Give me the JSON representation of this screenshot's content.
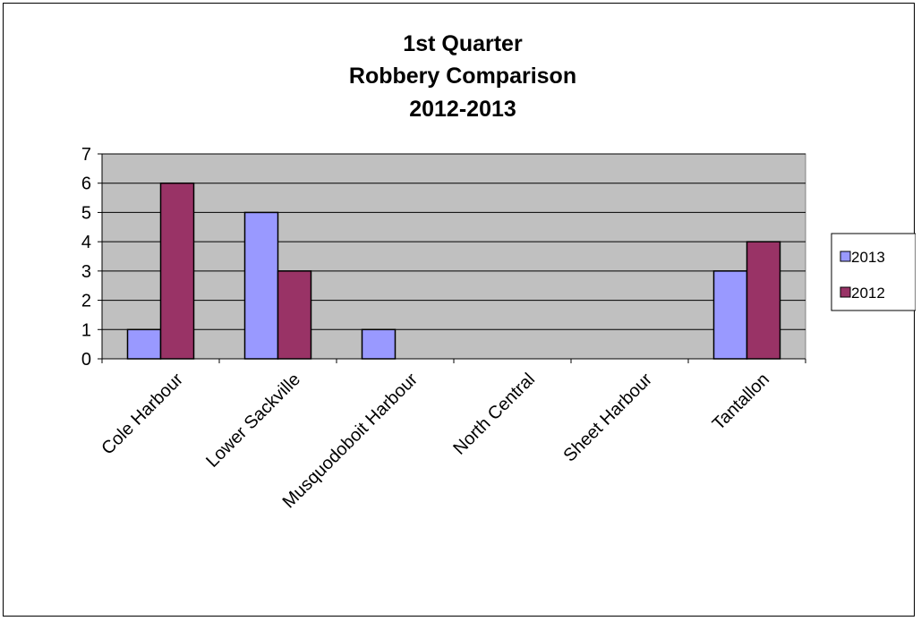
{
  "chart_data": {
    "type": "bar",
    "title_lines": [
      "1st Quarter",
      "Robbery Comparison",
      "2012-2013"
    ],
    "categories": [
      "Cole Harbour",
      "Lower Sackville",
      "Musquodoboit Harbour",
      "North Central",
      "Sheet Harbour",
      "Tantallon"
    ],
    "series": [
      {
        "name": "2013",
        "color": "#9999ff",
        "values": [
          1,
          5,
          1,
          0,
          0,
          3
        ]
      },
      {
        "name": "2012",
        "color": "#993366",
        "values": [
          6,
          3,
          0,
          0,
          0,
          4
        ]
      }
    ],
    "xlabel": "",
    "ylabel": "",
    "ylim": [
      0,
      7
    ],
    "yticks": [
      "0",
      "1",
      "2",
      "3",
      "4",
      "5",
      "6",
      "7"
    ],
    "plot_background": "#c0c0c0",
    "grid": true,
    "legend_position": "right"
  }
}
